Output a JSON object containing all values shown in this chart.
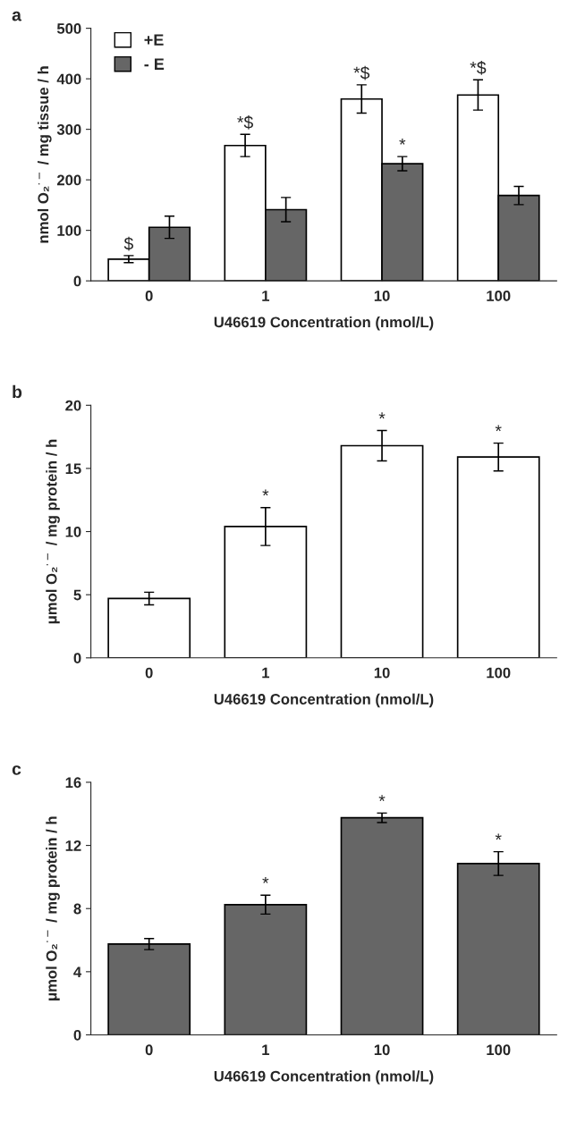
{
  "chart_data": [
    {
      "type": "bar",
      "title": "a",
      "categories": [
        "0",
        "1",
        "10",
        "100"
      ],
      "xlabel": "U46619 Concentration (nmol/L)",
      "ylabel": "nmol O₂$^{·−}$ / mg tissue / h",
      "ylim": [
        0,
        500
      ],
      "yticks": [
        0,
        100,
        200,
        300,
        400,
        500
      ],
      "grid": false,
      "legend": "top left",
      "series": [
        {
          "name": "+E",
          "color": "#ffffff",
          "values": [
            43,
            268,
            360,
            368
          ],
          "errors": [
            7,
            22,
            28,
            30
          ]
        },
        {
          "name": "- E",
          "color": "#666666",
          "values": [
            106,
            141,
            232,
            169
          ],
          "errors": [
            22,
            24,
            14,
            18
          ]
        }
      ],
      "annotations": [
        {
          "text": "$",
          "x": "0",
          "y": 43
        },
        {
          "text": "*$",
          "x": "1",
          "y": 268
        },
        {
          "text": "*$",
          "x": "10",
          "y": 360
        },
        {
          "text": "*$",
          "x": "100",
          "y": 368
        },
        {
          "text": "*",
          "x": "10",
          "y": 232
        }
      ]
    },
    {
      "type": "bar",
      "title": "b",
      "categories": [
        "0",
        "1",
        "10",
        "100"
      ],
      "xlabel": "U46619 Concentration (nmol/L)",
      "ylabel": "μmol O₂$^{·−}$ / mg protein / h",
      "ylim": [
        0,
        20
      ],
      "yticks": [
        0,
        5,
        10,
        15,
        20
      ],
      "grid": false,
      "series": [
        {
          "color": "#ffffff",
          "values": [
            4.7,
            10.4,
            16.8,
            15.9
          ],
          "errors": [
            0.5,
            1.5,
            1.2,
            1.1
          ]
        }
      ],
      "annotations": [
        {
          "text": "*",
          "x": "1",
          "y": 10.4
        },
        {
          "text": "*",
          "x": "10",
          "y": 16.8
        },
        {
          "text": "*",
          "x": "100",
          "y": 15.9
        }
      ]
    },
    {
      "type": "bar",
      "title": "c",
      "categories": [
        "0",
        "1",
        "10",
        "100"
      ],
      "xlabel": "U46619 Concentration (nmol/L)",
      "ylabel": "μmol O₂$^{·−}$ / mg protein / h",
      "ylim": [
        0,
        16
      ],
      "yticks": [
        0,
        4,
        8,
        12,
        16
      ],
      "grid": false,
      "series": [
        {
          "color": "#666666",
          "values": [
            5.75,
            8.25,
            13.75,
            10.85
          ],
          "errors": [
            0.35,
            0.6,
            0.3,
            0.75
          ]
        }
      ],
      "annotations": [
        {
          "text": "*",
          "x": "1",
          "y": 8.25
        },
        {
          "text": "*",
          "x": "10",
          "y": 13.75
        },
        {
          "text": "*",
          "x": "100",
          "y": 10.85
        }
      ]
    }
  ]
}
